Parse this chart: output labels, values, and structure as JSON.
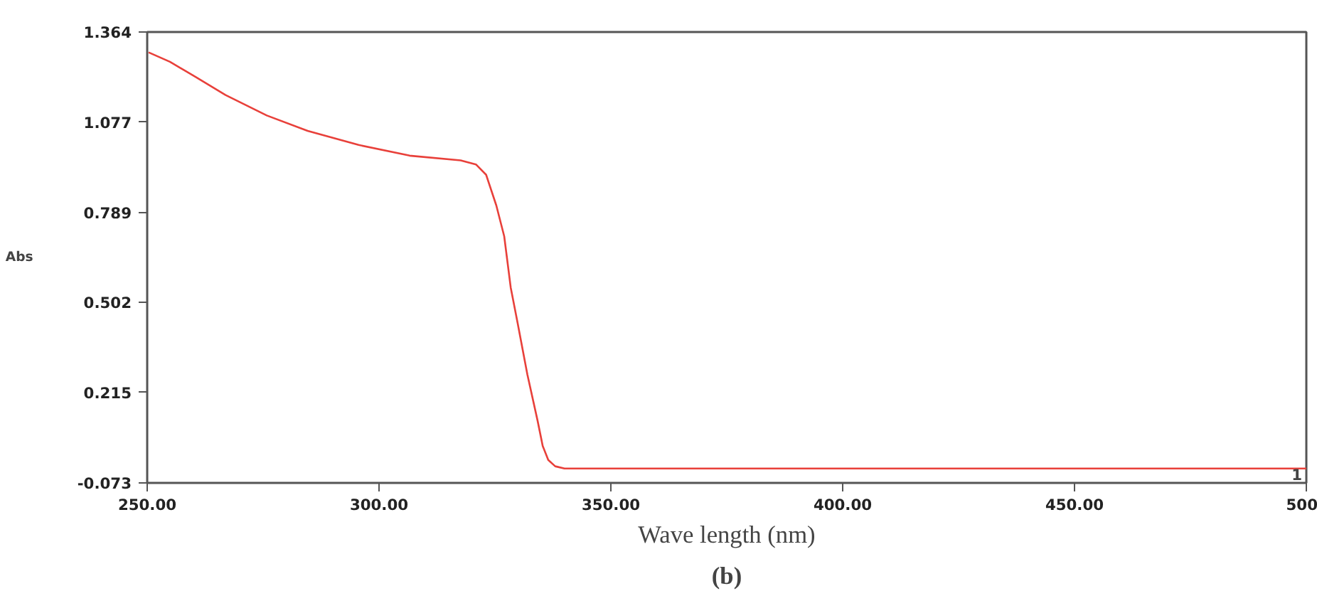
{
  "chart_data": {
    "type": "line",
    "xlabel": "Wave length (nm)",
    "ylabel": "Abs",
    "annotations": [
      "1",
      "(b)"
    ],
    "x": [
      250.3,
      254.9,
      260.3,
      266.9,
      275.8,
      284.6,
      295.6,
      306.6,
      317.6,
      320.9,
      323.1,
      325.3,
      327.0,
      328.4,
      329.9,
      332.0,
      334.2,
      335.3,
      336.5,
      338.0,
      340.0,
      360.0,
      400.0,
      450.0,
      500.0
    ],
    "series": [
      {
        "color": "#e8403a",
        "values": [
          1.299,
          1.269,
          1.222,
          1.163,
          1.098,
          1.049,
          1.004,
          0.97,
          0.955,
          0.942,
          0.909,
          0.811,
          0.713,
          0.55,
          0.436,
          0.272,
          0.125,
          0.045,
          0.0,
          -0.02,
          -0.027,
          -0.027,
          -0.027,
          -0.027,
          -0.027
        ]
      }
    ],
    "xlim": [
      250,
      500
    ],
    "ylim": [
      -0.073,
      1.364
    ],
    "xticks": [
      {
        "value": 250,
        "label": "250.00"
      },
      {
        "value": 300,
        "label": "300.00"
      },
      {
        "value": 350,
        "label": "350.00"
      },
      {
        "value": 400,
        "label": "400.00"
      },
      {
        "value": 450,
        "label": "450.00"
      },
      500
    ],
    "yticks": [
      1.364,
      1.077,
      0.789,
      0.502,
      0.215,
      -0.073
    ],
    "grid": false,
    "marker": "none",
    "line_style": "solid"
  }
}
